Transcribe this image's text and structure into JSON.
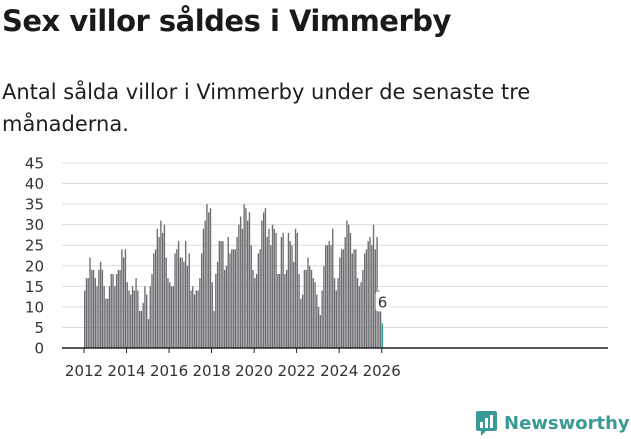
{
  "title": "Sex villor såldes i Vimmerby",
  "subtitle": "Antal sålda villor i Vimmerby under de senaste tre månaderna.",
  "brand": {
    "name": "Newsworthy",
    "icon": "newsworthy-chart-icon",
    "color": "#3a9a96"
  },
  "chart_data": {
    "type": "bar",
    "title": "",
    "xlabel": "",
    "ylabel": "",
    "ylim": [
      0,
      45
    ],
    "yticks": [
      "0",
      "5",
      "10",
      "15",
      "20",
      "25",
      "30",
      "35",
      "40",
      "45"
    ],
    "xticks": [
      {
        "label": "2012",
        "year": 2012
      },
      {
        "label": "2014",
        "year": 2014
      },
      {
        "label": "2016",
        "year": 2016
      },
      {
        "label": "2018",
        "year": 2018
      },
      {
        "label": "2020",
        "year": 2020
      },
      {
        "label": "2022",
        "year": 2022
      },
      {
        "label": "2024",
        "year": 2024
      },
      {
        "label": "2026",
        "year": 2026
      }
    ],
    "start": "2012-01",
    "bar_color": "#6e6d72",
    "highlight_color": "#2a9d8f",
    "highlight_label": "6",
    "values": [
      14,
      17,
      17,
      22,
      19,
      19,
      17,
      15,
      19,
      21,
      19,
      15,
      12,
      12,
      15,
      18,
      18,
      15,
      18,
      19,
      19,
      24,
      22,
      24,
      16,
      14,
      13,
      15,
      14,
      17,
      14,
      9,
      9,
      11,
      15,
      13,
      7,
      15,
      18,
      23,
      24,
      29,
      27,
      31,
      28,
      30,
      22,
      17,
      16,
      15,
      15,
      23,
      24,
      26,
      22,
      22,
      21,
      26,
      20,
      23,
      14,
      15,
      13,
      14,
      14,
      17,
      23,
      29,
      31,
      35,
      33,
      34,
      16,
      9,
      18,
      21,
      26,
      26,
      26,
      19,
      20,
      27,
      23,
      24,
      24,
      24,
      27,
      30,
      32,
      29,
      35,
      34,
      31,
      33,
      25,
      19,
      17,
      18,
      23,
      24,
      31,
      33,
      34,
      27,
      29,
      25,
      30,
      29,
      28,
      18,
      18,
      27,
      28,
      18,
      19,
      28,
      26,
      25,
      21,
      29,
      28,
      18,
      12,
      13,
      19,
      19,
      22,
      20,
      19,
      17,
      16,
      13,
      10,
      8,
      14,
      20,
      25,
      25,
      26,
      25,
      29,
      17,
      14,
      17,
      22,
      24,
      24,
      27,
      31,
      30,
      28,
      23,
      24,
      24,
      17,
      15,
      16,
      19,
      23,
      24,
      26,
      27,
      25,
      30,
      24,
      27,
      14,
      10,
      6
    ]
  }
}
